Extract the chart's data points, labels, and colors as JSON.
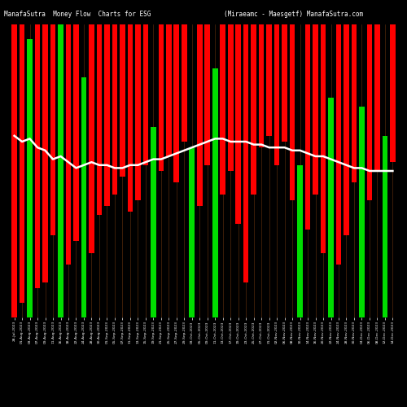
{
  "title_left": "ManafaSutra  Money Flow  Charts for ESG",
  "title_right": "(Miraeamc - Maesgetf) ManafaSutra.com",
  "background_color": "#000000",
  "bar_width": 0.7,
  "line_color": "#ffffff",
  "line_width": 1.8,
  "colors": [
    "#ff0000",
    "#ff0000",
    "#00dd00",
    "#ff0000",
    "#ff0000",
    "#ff0000",
    "#00dd00",
    "#ff0000",
    "#ff0000",
    "#00dd00",
    "#ff0000",
    "#ff0000",
    "#ff0000",
    "#ff0000",
    "#ff0000",
    "#ff0000",
    "#ff0000",
    "#ff0000",
    "#00dd00",
    "#ff0000",
    "#ff0000",
    "#ff0000",
    "#ff0000",
    "#00dd00",
    "#ff0000",
    "#ff0000",
    "#00dd00",
    "#ff0000",
    "#ff0000",
    "#ff0000",
    "#ff0000",
    "#ff0000",
    "#ff0000",
    "#ff0000",
    "#ff0000",
    "#ff0000",
    "#ff0000",
    "#00dd00",
    "#ff0000",
    "#ff0000",
    "#ff0000",
    "#00dd00",
    "#ff0000",
    "#ff0000",
    "#ff0000",
    "#00dd00",
    "#ff0000",
    "#ff0000",
    "#00dd00",
    "#ff0000"
  ],
  "values": [
    100,
    100,
    95,
    100,
    100,
    100,
    100,
    100,
    100,
    82,
    100,
    100,
    100,
    100,
    100,
    100,
    100,
    100,
    65,
    100,
    100,
    100,
    100,
    58,
    100,
    100,
    85,
    100,
    100,
    100,
    100,
    100,
    100,
    100,
    100,
    100,
    100,
    52,
    100,
    100,
    100,
    75,
    100,
    100,
    100,
    72,
    100,
    100,
    62,
    100
  ],
  "bottom_values": [
    0,
    5,
    0,
    10,
    12,
    28,
    0,
    18,
    26,
    0,
    22,
    35,
    38,
    42,
    48,
    36,
    40,
    52,
    0,
    50,
    55,
    46,
    60,
    0,
    38,
    52,
    0,
    42,
    50,
    32,
    12,
    42,
    58,
    62,
    52,
    60,
    40,
    0,
    30,
    42,
    22,
    0,
    18,
    28,
    46,
    0,
    40,
    50,
    0,
    53
  ],
  "line_values": [
    62,
    60,
    61,
    58,
    57,
    54,
    55,
    53,
    51,
    52,
    53,
    52,
    52,
    51,
    51,
    52,
    52,
    53,
    54,
    54,
    55,
    56,
    57,
    58,
    59,
    60,
    61,
    61,
    60,
    60,
    60,
    59,
    59,
    58,
    58,
    58,
    57,
    57,
    56,
    55,
    55,
    54,
    53,
    52,
    51,
    51,
    50,
    50,
    50,
    50
  ],
  "labels": [
    "28-Jul-2023",
    "01-Aug-2023",
    "03-Aug-2023",
    "07-Aug-2023",
    "09-Aug-2023",
    "11-Aug-2023",
    "16-Aug-2023",
    "18-Aug-2023",
    "22-Aug-2023",
    "24-Aug-2023",
    "28-Aug-2023",
    "30-Aug-2023",
    "01-Sep-2023",
    "05-Sep-2023",
    "07-Sep-2023",
    "11-Sep-2023",
    "13-Sep-2023",
    "15-Sep-2023",
    "19-Sep-2023",
    "21-Sep-2023",
    "25-Sep-2023",
    "27-Sep-2023",
    "29-Sep-2023",
    "03-Oct-2023",
    "05-Oct-2023",
    "09-Oct-2023",
    "11-Oct-2023",
    "13-Oct-2023",
    "17-Oct-2023",
    "19-Oct-2023",
    "23-Oct-2023",
    "25-Oct-2023",
    "27-Oct-2023",
    "31-Oct-2023",
    "02-Nov-2023",
    "06-Nov-2023",
    "08-Nov-2023",
    "10-Nov-2023",
    "14-Nov-2023",
    "16-Nov-2023",
    "20-Nov-2023",
    "22-Nov-2023",
    "24-Nov-2023",
    "28-Nov-2023",
    "30-Nov-2023",
    "04-Dec-2023",
    "06-Dec-2023",
    "08-Dec-2023",
    "12-Dec-2023",
    "14-Dec-2023"
  ],
  "grid_color": "#8B4513",
  "ylim": [
    0,
    100
  ],
  "line_scale": 1.0
}
